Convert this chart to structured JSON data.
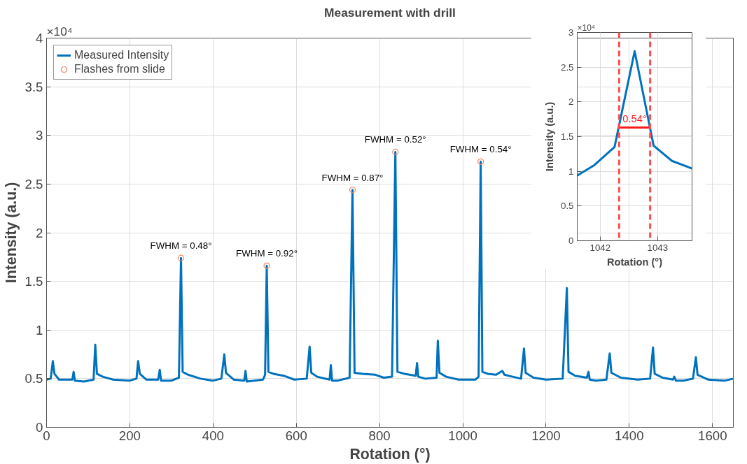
{
  "chart_data": [
    {
      "type": "line",
      "title": "Measurement with drill",
      "xlabel": "Rotation (°)",
      "ylabel": "Intensity (a.u.)",
      "xlim": [
        0,
        1650
      ],
      "xticks": [
        0,
        200,
        400,
        600,
        800,
        1000,
        1200,
        1400,
        1600
      ],
      "ylim": [
        0,
        4
      ],
      "yticks": [
        0,
        0.5,
        1,
        1.5,
        2,
        2.5,
        3,
        3.5,
        4
      ],
      "grid": true,
      "legend": "top left",
      "series": [
        {
          "name": "Measured Intensity",
          "color": "#0072bd",
          "x": [
            0,
            10,
            15,
            19,
            30,
            62,
            65,
            68,
            90,
            113,
            117,
            121,
            135,
            160,
            200,
            216,
            220,
            224,
            240,
            268,
            272,
            275,
            300,
            318,
            323,
            327,
            340,
            370,
            400,
            420,
            427,
            431,
            450,
            475,
            478,
            481,
            520,
            525,
            529,
            533,
            545,
            570,
            595,
            625,
            632,
            636,
            650,
            680,
            683,
            686,
            700,
            728,
            735,
            740,
            760,
            790,
            810,
            830,
            838,
            843,
            860,
            887,
            890,
            893,
            910,
            937,
            940,
            944,
            960,
            990,
            1030,
            1038,
            1043,
            1047,
            1060,
            1080,
            1095,
            1100,
            1120,
            1140,
            1147,
            1151,
            1170,
            1200,
            1240,
            1250,
            1254,
            1270,
            1298,
            1302,
            1305,
            1320,
            1345,
            1353,
            1357,
            1380,
            1420,
            1450,
            1457,
            1461,
            1480,
            1505,
            1508,
            1512,
            1530,
            1553,
            1560,
            1564,
            1590,
            1630,
            1650
          ],
          "values": [
            0.49,
            0.5,
            0.68,
            0.55,
            0.49,
            0.49,
            0.57,
            0.48,
            0.47,
            0.49,
            0.85,
            0.55,
            0.52,
            0.49,
            0.48,
            0.5,
            0.68,
            0.55,
            0.49,
            0.49,
            0.59,
            0.48,
            0.48,
            0.51,
            1.74,
            0.57,
            0.54,
            0.5,
            0.48,
            0.5,
            0.75,
            0.56,
            0.49,
            0.48,
            0.58,
            0.47,
            0.49,
            0.54,
            1.66,
            0.57,
            0.55,
            0.53,
            0.49,
            0.5,
            0.83,
            0.56,
            0.52,
            0.49,
            0.64,
            0.48,
            0.48,
            0.51,
            2.44,
            0.56,
            0.55,
            0.54,
            0.51,
            0.52,
            2.83,
            0.57,
            0.55,
            0.53,
            0.66,
            0.52,
            0.5,
            0.51,
            0.89,
            0.56,
            0.52,
            0.49,
            0.49,
            0.52,
            2.73,
            0.57,
            0.55,
            0.54,
            0.58,
            0.54,
            0.52,
            0.5,
            0.81,
            0.56,
            0.51,
            0.49,
            0.5,
            1.43,
            0.57,
            0.53,
            0.51,
            0.57,
            0.49,
            0.48,
            0.49,
            0.76,
            0.56,
            0.51,
            0.49,
            0.5,
            0.82,
            0.55,
            0.51,
            0.49,
            0.52,
            0.48,
            0.48,
            0.5,
            0.72,
            0.54,
            0.49,
            0.48,
            0.5
          ]
        },
        {
          "name": "Flashes from slide",
          "type": "scatter",
          "marker": "circle",
          "color": "#f0825a",
          "x": [
            323,
            529,
            735,
            838,
            1043
          ],
          "values": [
            1.74,
            1.66,
            2.44,
            2.83,
            2.73
          ]
        }
      ],
      "annotations": [
        "×10⁴",
        {
          "text": "FWHM = 0.48°",
          "x": 323,
          "y": 1.74
        },
        {
          "text": "FWHM = 0.92°",
          "x": 529,
          "y": 1.66
        },
        {
          "text": "FWHM = 0.87°",
          "x": 735,
          "y": 2.44
        },
        {
          "text": "FWHM = 0.52°",
          "x": 838,
          "y": 2.83
        },
        {
          "text": "FWHM = 0.54°",
          "x": 1043,
          "y": 2.73
        }
      ]
    },
    {
      "type": "line",
      "xlabel": "Rotation (°)",
      "ylabel": "Intensity (a.u.)",
      "xlim": [
        1041.6,
        1043.6
      ],
      "xticks": [
        1042,
        1043
      ],
      "ylim": [
        0,
        3
      ],
      "yticks": [
        0,
        0.5,
        1,
        1.5,
        2,
        2.5,
        3
      ],
      "grid": true,
      "series": [
        {
          "color": "#0072bd",
          "x": [
            1041.6,
            1041.9,
            1042.25,
            1042.6,
            1042.93,
            1043.25,
            1043.6
          ],
          "values": [
            0.94,
            1.09,
            1.35,
            2.73,
            1.37,
            1.15,
            1.04
          ]
        },
        {
          "color": "#ff1a1a",
          "x": [
            1042.33,
            1042.87
          ],
          "values": [
            1.63,
            1.63
          ]
        }
      ],
      "ref_lines": [
        {
          "axis": "x",
          "value": 1042.33,
          "color": "#ff4d4d",
          "line_style": "dashed"
        },
        {
          "axis": "x",
          "value": 1042.87,
          "color": "#ff4d4d",
          "line_style": "dashed"
        }
      ],
      "annotations": [
        "×10⁴",
        {
          "text": "0.54°",
          "x": 1042.6,
          "y": 1.63
        }
      ]
    }
  ]
}
